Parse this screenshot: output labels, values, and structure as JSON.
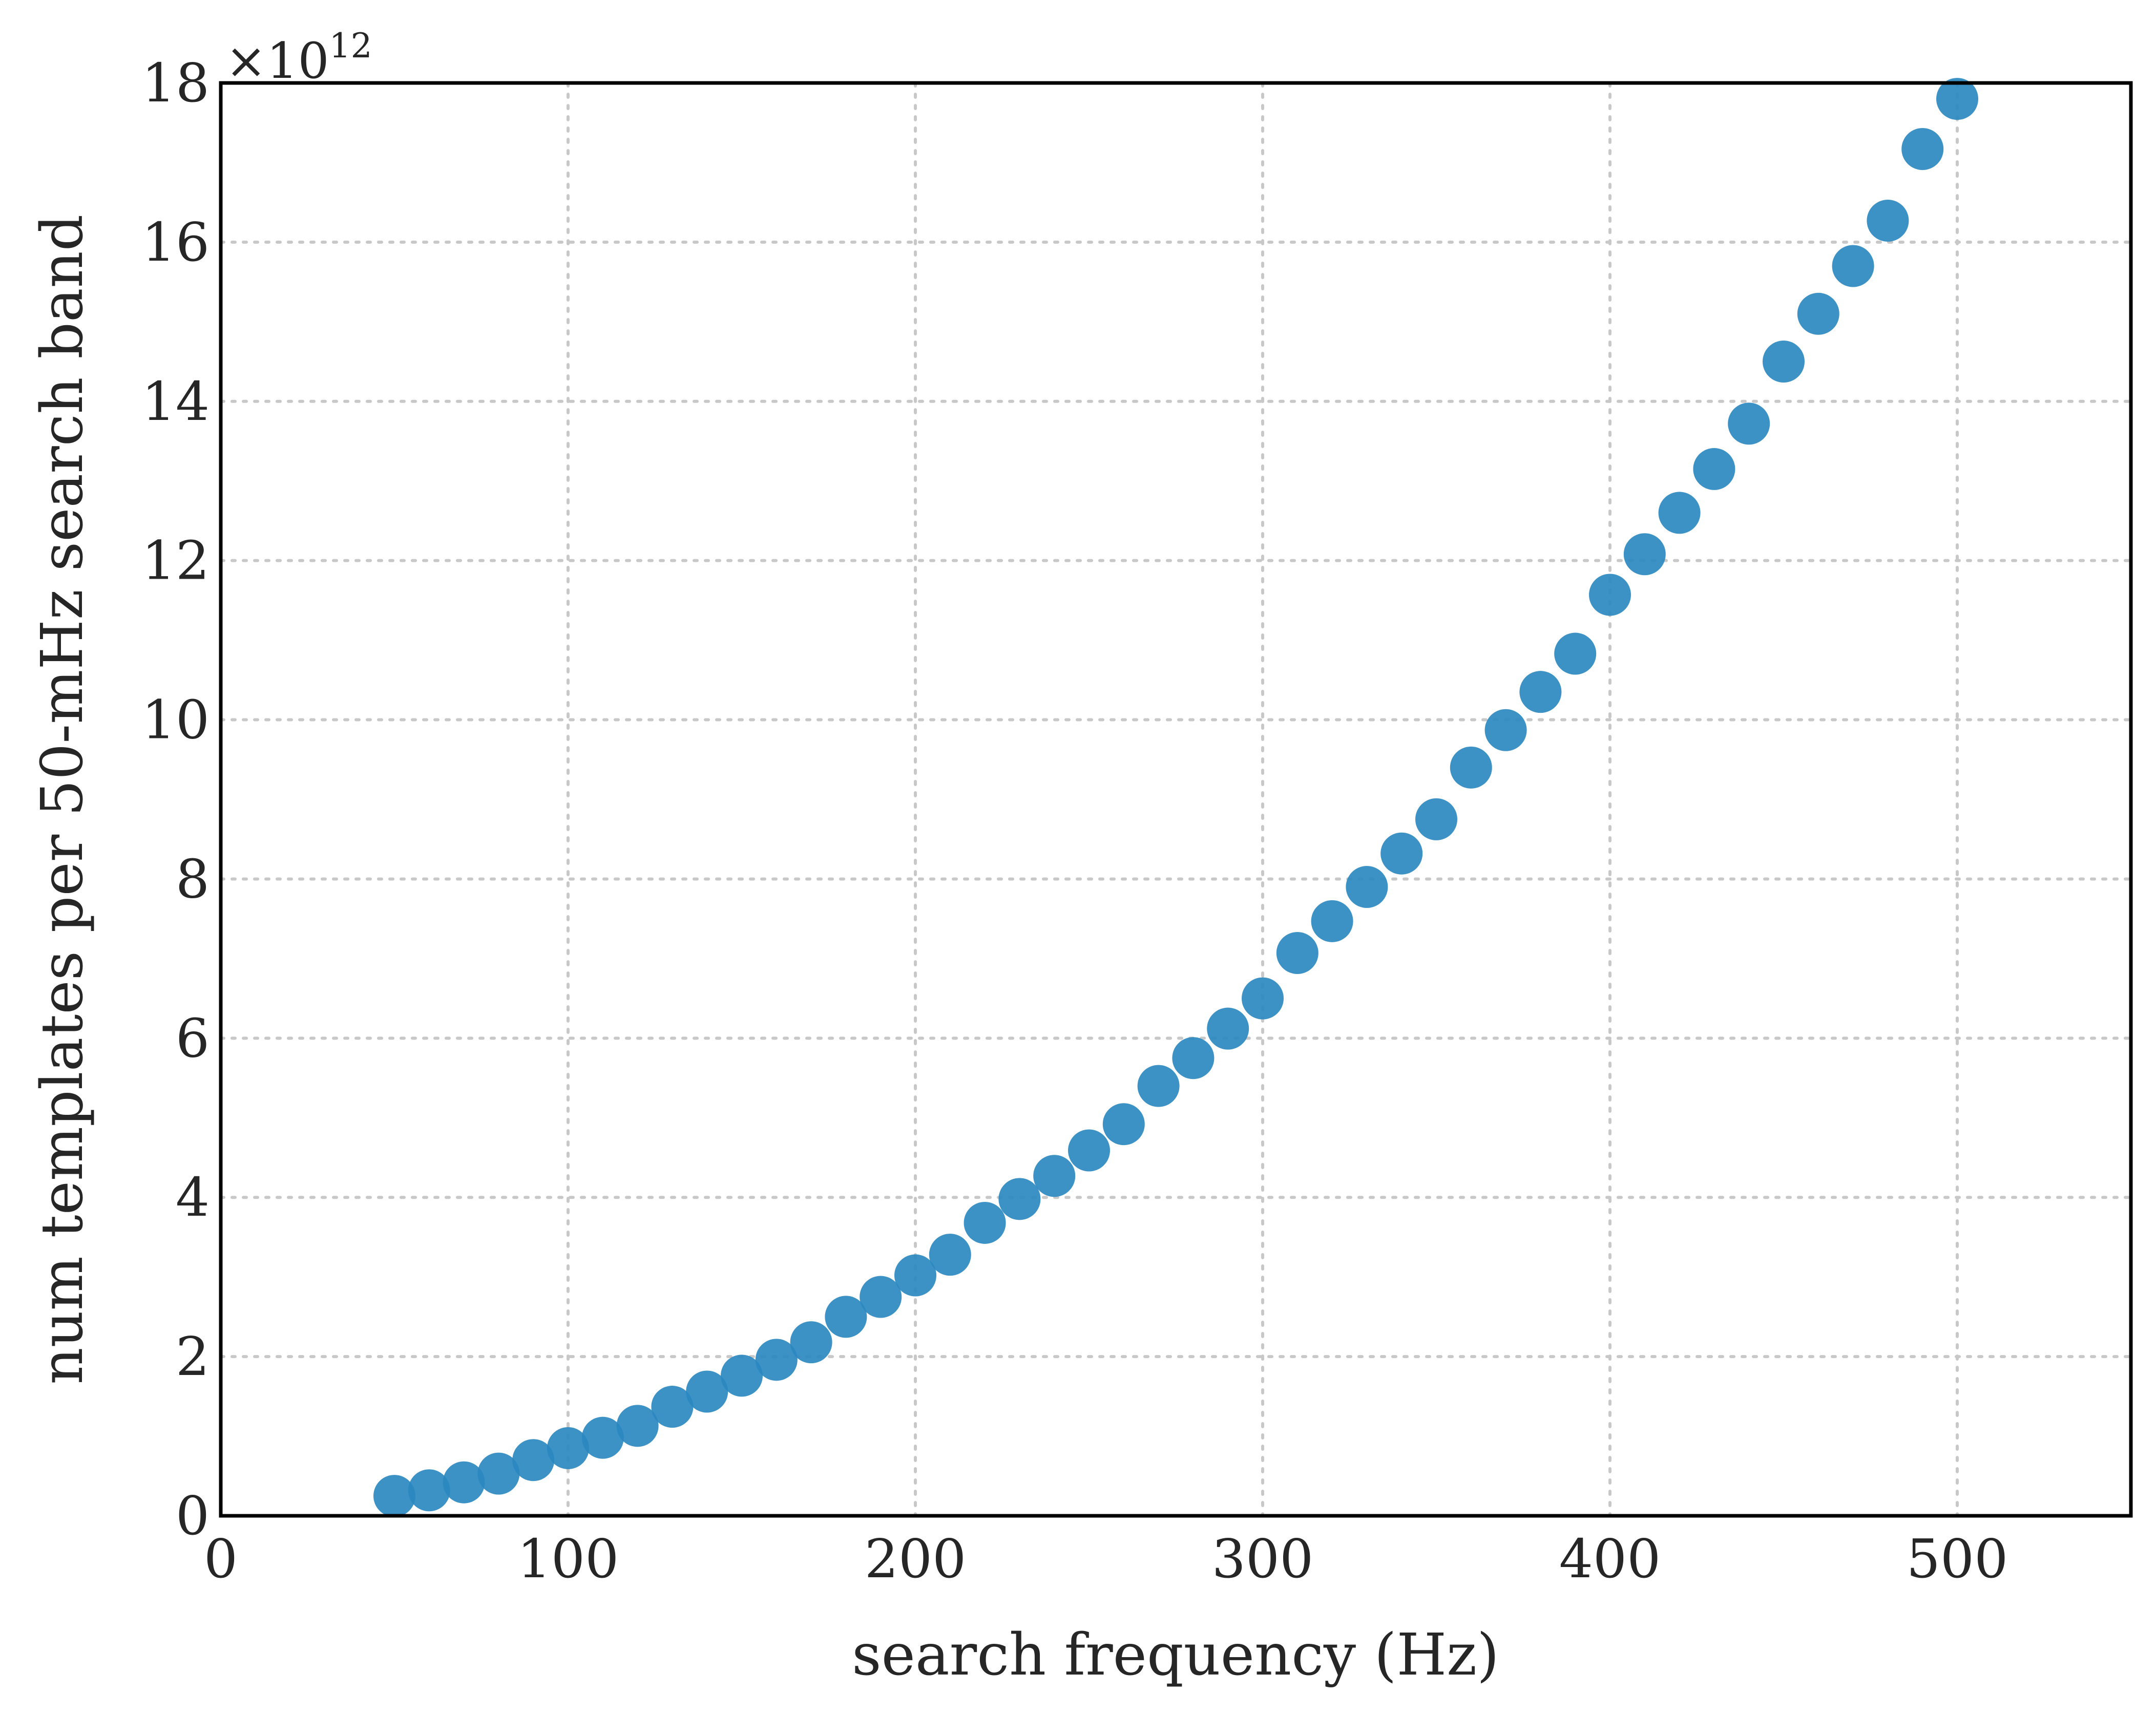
{
  "chart_data": {
    "type": "scatter",
    "xlabel": "search frequency (Hz)",
    "ylabel": "num templates per 50-mHz search band",
    "y_multiplier": {
      "base": "×10",
      "exponent": "12"
    },
    "xlim": [
      0,
      550
    ],
    "ylim": [
      0,
      18
    ],
    "x_ticks": [
      0,
      100,
      200,
      300,
      400,
      500
    ],
    "y_ticks": [
      0,
      2,
      4,
      6,
      8,
      10,
      12,
      14,
      16,
      18
    ],
    "grid": true,
    "grid_style": "dotted",
    "marker_color": "#2b88c0",
    "series": [
      {
        "x": [
          50,
          60,
          70,
          80,
          90,
          100,
          110,
          120,
          130,
          140,
          150,
          160,
          170,
          180,
          190,
          200,
          210,
          220,
          230,
          240,
          250,
          260,
          270,
          280,
          290,
          300,
          310,
          320,
          330,
          340,
          350,
          360,
          370,
          380,
          390,
          400,
          410,
          420,
          430,
          440,
          450,
          460,
          470,
          480,
          490,
          500
        ],
        "y": [
          0.25,
          0.32,
          0.42,
          0.53,
          0.7,
          0.85,
          0.98,
          1.13,
          1.37,
          1.56,
          1.76,
          1.96,
          2.18,
          2.5,
          2.75,
          3.02,
          3.28,
          3.68,
          3.98,
          4.27,
          4.59,
          4.92,
          5.4,
          5.75,
          6.12,
          6.5,
          7.07,
          7.47,
          7.9,
          8.32,
          8.75,
          9.4,
          9.87,
          10.35,
          10.83,
          11.57,
          12.08,
          12.6,
          13.15,
          13.72,
          14.5,
          15.1,
          15.7,
          16.27,
          17.17,
          17.8
        ]
      }
    ]
  }
}
